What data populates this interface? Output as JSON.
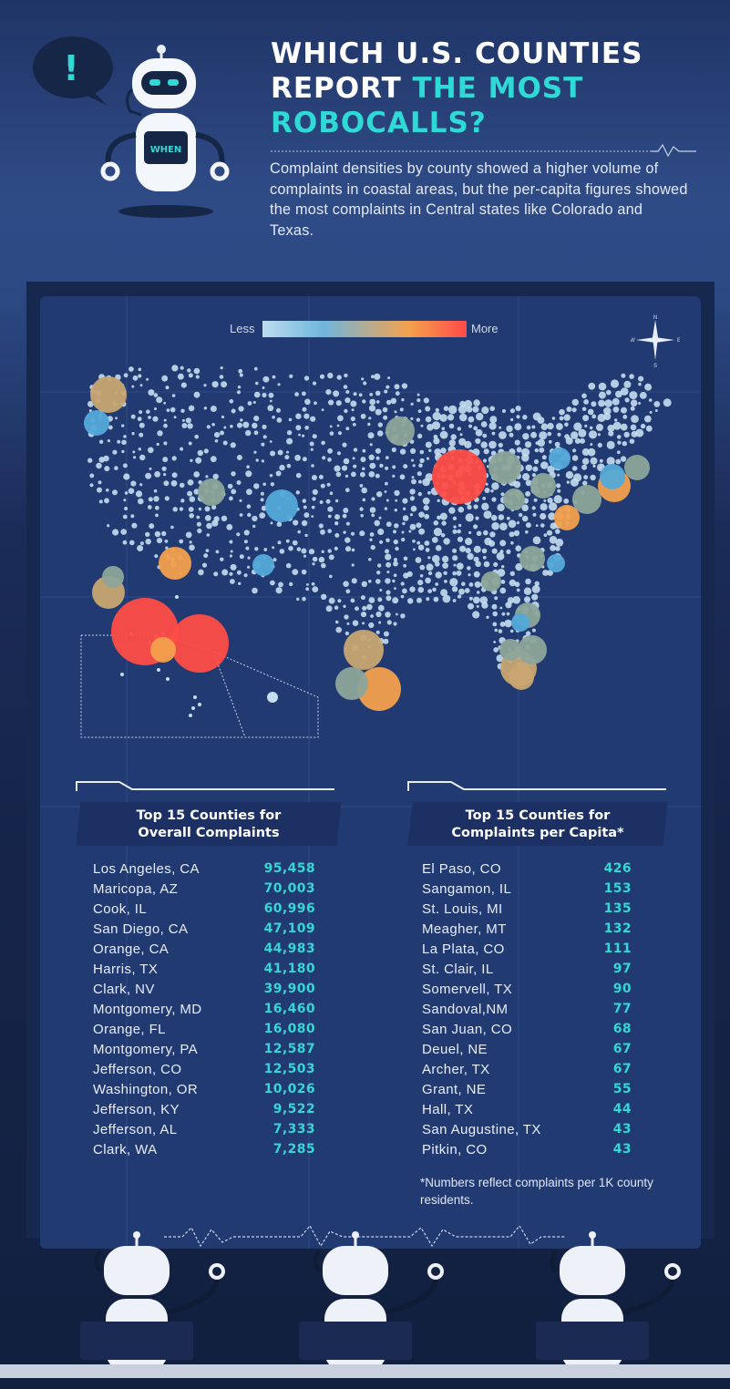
{
  "header": {
    "title_line1": "WHICH U.S. COUNTIES",
    "title_line2_plain": "REPORT ",
    "title_line2_highlight": "THE MOST",
    "title_line3_highlight": "ROBOCALLS?",
    "subtitle": "Complaint densities by county showed a higher volume of complaints in coastal areas, but the per-capita figures showed the most complaints in Central states like Colorado and Texas.",
    "bubble_symbol": "!",
    "robot_chest_label": "WHEN"
  },
  "legend": {
    "less_label": "Less",
    "more_label": "More",
    "scale_colors": [
      "#bcdcef",
      "#6fb6dc",
      "#f4a24c",
      "#ff4a4a"
    ]
  },
  "compass": {
    "north": "N",
    "south": "S",
    "east": "E",
    "west": "W"
  },
  "colors": {
    "accent": "#2fd9d6",
    "panel": "#223a72",
    "small_dot": "#c5def0",
    "blue_circle": "#53a9d8",
    "green_circle": "#8ca59a",
    "tan_circle": "#c8a571",
    "orange_circle": "#f3a04d",
    "red_circle": "#ff4d46"
  },
  "tables": {
    "overall": {
      "title_line1": "Top 15 Counties for",
      "title_line2": "Overall Complaints",
      "rows": [
        {
          "name": "Los Angeles, CA",
          "value": "95,458"
        },
        {
          "name": "Maricopa, AZ",
          "value": "70,003"
        },
        {
          "name": "Cook, IL",
          "value": "60,996"
        },
        {
          "name": "San Diego, CA",
          "value": "47,109"
        },
        {
          "name": "Orange, CA",
          "value": "44,983"
        },
        {
          "name": "Harris, TX",
          "value": "41,180"
        },
        {
          "name": "Clark, NV",
          "value": "39,900"
        },
        {
          "name": "Montgomery, MD",
          "value": "16,460"
        },
        {
          "name": "Orange, FL",
          "value": "16,080"
        },
        {
          "name": "Montgomery, PA",
          "value": "12,587"
        },
        {
          "name": "Jefferson, CO",
          "value": "12,503"
        },
        {
          "name": "Washington, OR",
          "value": "10,026"
        },
        {
          "name": "Jefferson, KY",
          "value": "9,522"
        },
        {
          "name": "Jefferson, AL",
          "value": "7,333"
        },
        {
          "name": "Clark, WA",
          "value": "7,285"
        }
      ]
    },
    "per_capita": {
      "title_line1": "Top 15 Counties for",
      "title_line2": "Complaints per Capita*",
      "rows": [
        {
          "name": "El Paso, CO",
          "value": "426"
        },
        {
          "name": "Sangamon, IL",
          "value": "153"
        },
        {
          "name": "St. Louis, MI",
          "value": "135"
        },
        {
          "name": "Meagher, MT",
          "value": "132"
        },
        {
          "name": "La Plata, CO",
          "value": "111"
        },
        {
          "name": "St. Clair, IL",
          "value": "97"
        },
        {
          "name": "Somervell, TX",
          "value": "90"
        },
        {
          "name": "Sandoval,NM",
          "value": "77"
        },
        {
          "name": "San Juan, CO",
          "value": "68"
        },
        {
          "name": "Deuel, NE",
          "value": "67"
        },
        {
          "name": "Archer, TX",
          "value": "67"
        },
        {
          "name": "Grant, NE",
          "value": "55"
        },
        {
          "name": "Hall, TX",
          "value": "44"
        },
        {
          "name": "San Augustine, TX",
          "value": "43"
        },
        {
          "name": "Pitkin, CO",
          "value": "43"
        }
      ],
      "footnote": "*Numbers reflect complaints per 1K county residents."
    }
  }
}
